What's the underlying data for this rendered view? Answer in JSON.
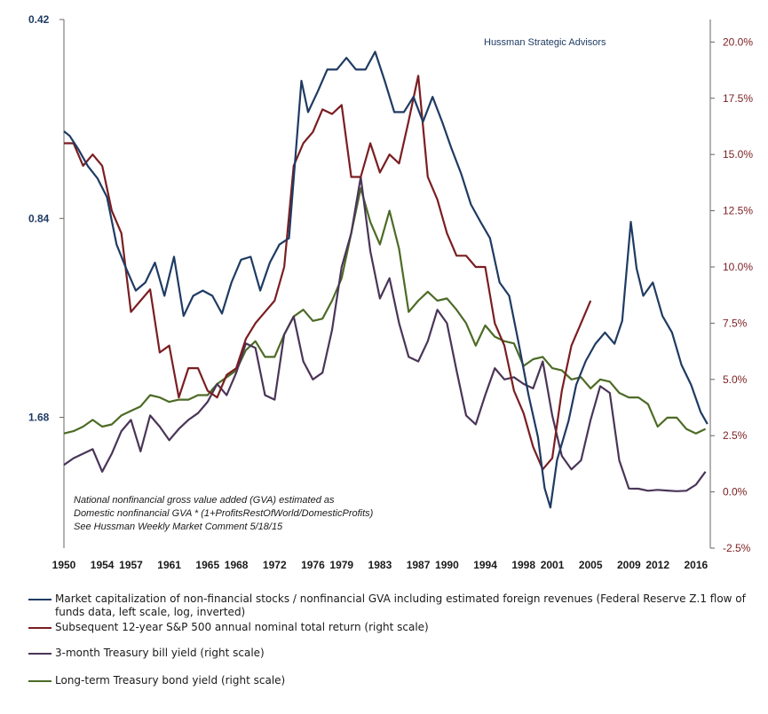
{
  "chart_data": {
    "type": "line",
    "watermark": "Hussman Strategic Advisors",
    "annotation": [
      "National nonfinancial gross value added (GVA) estimated as",
      "Domestic nonfinancial GVA  * (1+ProfitsRestOfWorld/DomesticProfits)",
      "See Hussman Weekly Market Comment 5/18/15"
    ],
    "x_tick_labels": [
      "1950",
      "1954",
      "1957",
      "1961",
      "1965",
      "1968",
      "1972",
      "1976",
      "1979",
      "1983",
      "1987",
      "1990",
      "1994",
      "1998",
      "2001",
      "2005",
      "2009",
      "2012",
      "2016"
    ],
    "xlim": [
      1950,
      2017.5
    ],
    "left_axis": {
      "scale": "log",
      "inverted": true,
      "ylim": [
        0.42,
        2.65
      ],
      "tick_labels": [
        "0.42",
        "0.84",
        "1.68"
      ]
    },
    "right_axis": {
      "ylim": [
        -2.5,
        21
      ],
      "tick_labels": [
        "20.0%",
        "17.5%",
        "15.0%",
        "12.5%",
        "10.0%",
        "7.5%",
        "5.0%",
        "2.5%",
        "0.0%",
        "-2.5%"
      ]
    },
    "series": [
      {
        "name": "Market capitalization of non-financial stocks / nonfinancial GVA including estimated foreign revenues (Federal Reserve Z.1 flow of funds data, left scale, log, inverted)",
        "axis": "left",
        "color": "#1f3b63",
        "x": [
          1950,
          1950.6,
          1951.5,
          1952.5,
          1953.5,
          1954.5,
          1955.5,
          1956.5,
          1957.5,
          1958.5,
          1959.5,
          1960.5,
          1961.5,
          1962.5,
          1963.5,
          1964.5,
          1965.5,
          1966.5,
          1967.5,
          1968.5,
          1969.5,
          1970.5,
          1971.5,
          1972.5,
          1973.5,
          1974.8,
          1975.5,
          1976.5,
          1977.5,
          1978.5,
          1979.5,
          1980.5,
          1981.5,
          1982.5,
          1983.5,
          1984.5,
          1985.5,
          1986.5,
          1987.5,
          1988.5,
          1989.5,
          1990.5,
          1991.5,
          1992.5,
          1993.5,
          1994.5,
          1995.5,
          1996.5,
          1997.5,
          1998.5,
          1999.5,
          2000.2,
          2000.8,
          2001.5,
          2002.7,
          2003.5,
          2004.5,
          2005.5,
          2006.5,
          2007.5,
          2008.3,
          2009.2,
          2009.8,
          2010.5,
          2011.5,
          2012.5,
          2013.5,
          2014.5,
          2015.5,
          2016.5,
          2017.2
        ],
        "y": [
          0.62,
          0.63,
          0.66,
          0.7,
          0.73,
          0.78,
          0.92,
          1.0,
          1.08,
          1.05,
          0.98,
          1.1,
          0.96,
          1.18,
          1.1,
          1.08,
          1.1,
          1.17,
          1.05,
          0.97,
          0.96,
          1.08,
          0.98,
          0.92,
          0.9,
          0.52,
          0.58,
          0.54,
          0.5,
          0.5,
          0.48,
          0.5,
          0.5,
          0.47,
          0.52,
          0.58,
          0.58,
          0.55,
          0.6,
          0.55,
          0.6,
          0.66,
          0.72,
          0.8,
          0.85,
          0.9,
          1.05,
          1.1,
          1.3,
          1.55,
          1.8,
          2.15,
          2.3,
          1.95,
          1.7,
          1.5,
          1.38,
          1.3,
          1.25,
          1.3,
          1.2,
          0.85,
          1.0,
          1.1,
          1.05,
          1.18,
          1.25,
          1.4,
          1.5,
          1.65,
          1.72
        ]
      },
      {
        "name": "Subsequent 12-year S&P 500 annual nominal total return (right scale)",
        "axis": "right",
        "color": "#7a1e22",
        "x": [
          1950,
          1951,
          1952,
          1953,
          1954,
          1955,
          1956,
          1957,
          1958,
          1959,
          1960,
          1961,
          1962,
          1963,
          1964,
          1965,
          1966,
          1967,
          1968,
          1969,
          1970,
          1971,
          1972,
          1973,
          1974,
          1975,
          1976,
          1977,
          1978,
          1979,
          1980,
          1981,
          1982,
          1983,
          1984,
          1985,
          1986,
          1987,
          1988,
          1989,
          1990,
          1991,
          1992,
          1993,
          1994,
          1995,
          1996,
          1997,
          1998,
          1999,
          2000,
          2001,
          2002,
          2003,
          2004,
          2005
        ],
        "y": [
          15.5,
          15.5,
          14.5,
          15.0,
          14.5,
          12.5,
          11.5,
          8.0,
          8.5,
          9.0,
          6.2,
          6.5,
          4.2,
          5.5,
          5.5,
          4.5,
          4.2,
          5.2,
          5.5,
          6.8,
          7.5,
          8.0,
          8.5,
          10.0,
          14.5,
          15.5,
          16.0,
          17.0,
          16.8,
          17.2,
          14.0,
          14.0,
          15.5,
          14.2,
          15.0,
          14.6,
          16.5,
          18.5,
          14.0,
          13.0,
          11.5,
          10.5,
          10.5,
          10.0,
          10.0,
          7.5,
          6.5,
          4.5,
          3.5,
          2.0,
          1.0,
          1.5,
          4.5,
          6.5,
          7.5,
          8.5
        ]
      },
      {
        "name": "3-month Treasury bill yield (right scale)",
        "axis": "right",
        "color": "#4a3558",
        "x": [
          1950,
          1951,
          1952,
          1953,
          1954,
          1955,
          1956,
          1957,
          1958,
          1959,
          1960,
          1961,
          1962,
          1963,
          1964,
          1965,
          1966,
          1967,
          1968,
          1969,
          1970,
          1971,
          1972,
          1973,
          1974,
          1975,
          1976,
          1977,
          1978,
          1979,
          1980,
          1981,
          1982,
          1983,
          1984,
          1985,
          1986,
          1987,
          1988,
          1989,
          1990,
          1991,
          1992,
          1993,
          1994,
          1995,
          1996,
          1997,
          1998,
          1999,
          2000,
          2001,
          2002,
          2003,
          2004,
          2005,
          2006,
          2007,
          2008,
          2009,
          2010,
          2011,
          2012,
          2013,
          2014,
          2015,
          2016,
          2017
        ],
        "y": [
          1.2,
          1.5,
          1.7,
          1.9,
          0.9,
          1.7,
          2.7,
          3.2,
          1.8,
          3.4,
          2.9,
          2.3,
          2.8,
          3.2,
          3.5,
          4.0,
          4.8,
          4.3,
          5.3,
          6.6,
          6.4,
          4.3,
          4.1,
          7.0,
          7.8,
          5.8,
          5.0,
          5.3,
          7.2,
          10.0,
          11.5,
          14.0,
          10.7,
          8.6,
          9.5,
          7.5,
          6.0,
          5.8,
          6.7,
          8.1,
          7.5,
          5.4,
          3.4,
          3.0,
          4.3,
          5.5,
          5.0,
          5.1,
          4.8,
          4.6,
          5.8,
          3.4,
          1.6,
          1.0,
          1.4,
          3.2,
          4.7,
          4.4,
          1.4,
          0.15,
          0.14,
          0.05,
          0.09,
          0.06,
          0.03,
          0.05,
          0.32,
          0.9
        ]
      },
      {
        "name": "Long-term Treasury bond yield (right scale)",
        "axis": "right",
        "color": "#4d6b26",
        "x": [
          1950,
          1951,
          1952,
          1953,
          1954,
          1955,
          1956,
          1957,
          1958,
          1959,
          1960,
          1961,
          1962,
          1963,
          1964,
          1965,
          1966,
          1967,
          1968,
          1969,
          1970,
          1971,
          1972,
          1973,
          1974,
          1975,
          1976,
          1977,
          1978,
          1979,
          1980,
          1981,
          1982,
          1983,
          1984,
          1985,
          1986,
          1987,
          1988,
          1989,
          1990,
          1991,
          1992,
          1993,
          1994,
          1995,
          1996,
          1997,
          1998,
          1999,
          2000,
          2001,
          2002,
          2003,
          2004,
          2005,
          2006,
          2007,
          2008,
          2009,
          2010,
          2011,
          2012,
          2013,
          2014,
          2015,
          2016,
          2017
        ],
        "y": [
          2.6,
          2.7,
          2.9,
          3.2,
          2.9,
          3.0,
          3.4,
          3.6,
          3.8,
          4.3,
          4.2,
          4.0,
          4.1,
          4.1,
          4.3,
          4.3,
          4.8,
          5.1,
          5.4,
          6.3,
          6.7,
          6.0,
          6.0,
          7.0,
          7.8,
          8.1,
          7.6,
          7.7,
          8.5,
          9.5,
          11.5,
          13.5,
          12.0,
          11.0,
          12.5,
          10.8,
          8.0,
          8.5,
          8.9,
          8.5,
          8.6,
          8.1,
          7.5,
          6.5,
          7.4,
          6.9,
          6.7,
          6.6,
          5.6,
          5.9,
          6.0,
          5.5,
          5.4,
          5.0,
          5.1,
          4.6,
          5.0,
          4.9,
          4.4,
          4.2,
          4.2,
          3.9,
          2.9,
          3.3,
          3.3,
          2.8,
          2.6,
          2.8
        ]
      }
    ]
  }
}
